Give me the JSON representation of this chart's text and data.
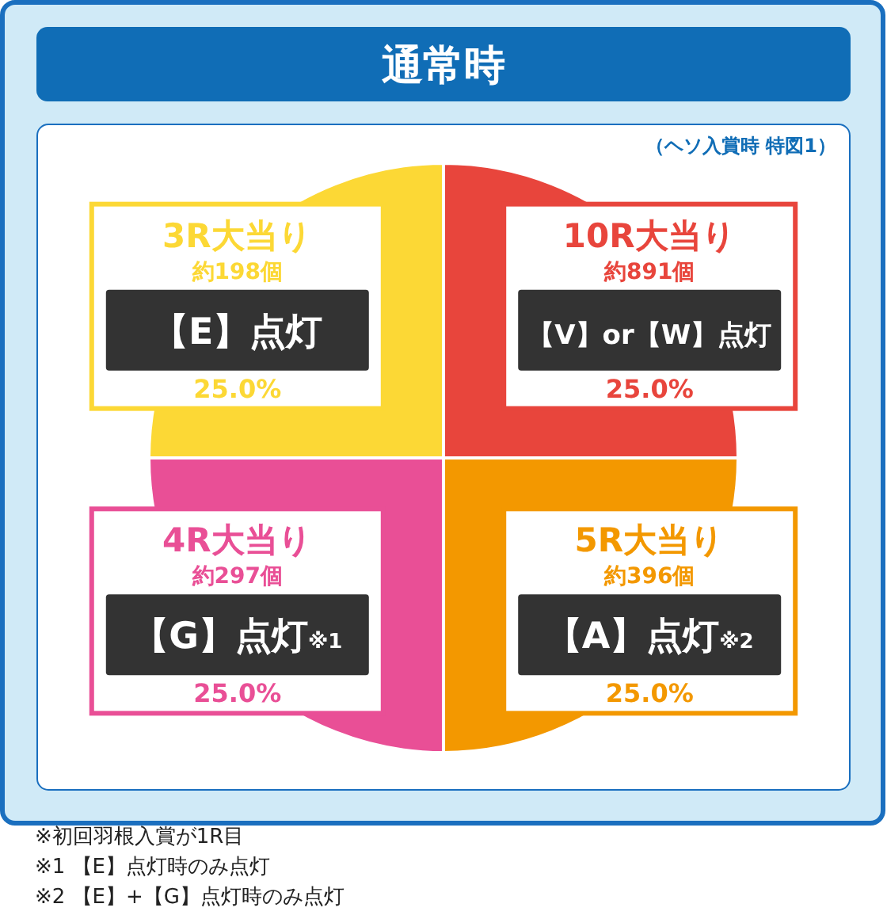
{
  "chart_data": {
    "type": "pie",
    "title": "通常時",
    "subtitle": "（ヘソ入賞時 特図1）",
    "categories": [
      "10R大当り",
      "5R大当り",
      "4R大当り",
      "3R大当り"
    ],
    "values": [
      25,
      25,
      25,
      25
    ],
    "colors": [
      "#e8453c",
      "#f39800",
      "#e94f96",
      "#fcd835"
    ],
    "value_labels": [
      "25.0%",
      "25.0%",
      "25.0%",
      "25.0%"
    ],
    "annotations": [
      "約891個",
      "【V】or【W】点灯",
      "約396個",
      "【A】点灯※2",
      "約297個",
      "【G】点灯※1",
      "約198個",
      "【E】点灯",
      "※初回羽根入賞が1R目",
      "※1 【E】点灯時のみ点灯",
      "※2 【E】+【G】点灯時のみ点灯"
    ]
  }
}
